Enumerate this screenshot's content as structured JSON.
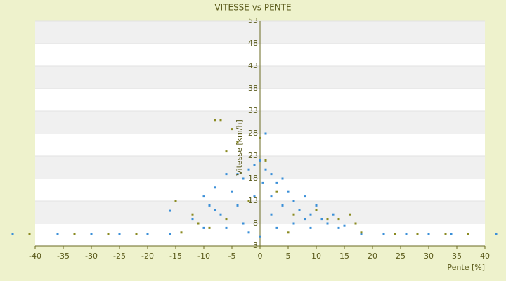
{
  "chart_data": {
    "type": "scatter",
    "title": "VITESSE vs PENTE",
    "xlabel": "Pente [%]",
    "ylabel": "Vitesse [km/h]",
    "xlim": [
      -40,
      40
    ],
    "xticks": [
      -40,
      -35,
      -30,
      -25,
      -20,
      -15,
      -10,
      -5,
      0,
      5,
      10,
      15,
      20,
      25,
      30,
      35,
      40
    ],
    "ylim": [
      3,
      53
    ],
    "yticks": [
      3,
      8,
      13,
      18,
      23,
      28,
      33,
      38,
      43,
      48,
      53
    ],
    "grid": true,
    "series": [
      {
        "color": "#3a8fd8",
        "x": [
          -44,
          -36,
          -30,
          -25,
          -20,
          -16,
          18,
          22,
          26,
          30,
          34,
          37,
          42,
          -16,
          -12,
          -10,
          -9,
          -8,
          -7,
          -6,
          -5,
          -4,
          -3,
          -2,
          -1,
          -1,
          0,
          0.5,
          1,
          1,
          2,
          2,
          3,
          4,
          5,
          6,
          7,
          8,
          9,
          10,
          11,
          12,
          13,
          14,
          15,
          -3,
          -6,
          -10,
          3,
          6,
          9,
          0,
          -2,
          2,
          -4,
          4,
          -8,
          8
        ],
        "values": [
          5.6,
          5.6,
          5.6,
          5.6,
          5.6,
          5.6,
          5.6,
          5.6,
          5.6,
          5.6,
          5.6,
          5.6,
          5.6,
          10.8,
          9,
          14,
          12,
          16,
          10,
          19,
          15,
          12,
          18,
          20,
          21,
          14,
          22,
          17,
          28,
          20,
          19,
          14,
          17,
          12,
          15,
          13,
          11,
          14,
          10,
          12,
          9,
          8,
          10,
          7,
          7.5,
          8,
          7,
          7,
          7,
          8,
          7,
          5,
          6,
          10,
          19,
          18,
          11,
          9
        ]
      },
      {
        "color": "#8a8a20",
        "x": [
          -41,
          -33,
          -27,
          -22,
          24,
          28,
          33,
          37,
          -8,
          -7,
          -5,
          -4,
          -15,
          -12,
          -11,
          -9,
          -6,
          -2,
          0,
          3,
          6,
          10,
          12,
          14,
          16,
          17,
          18,
          5,
          -14,
          -6,
          1
        ],
        "values": [
          5.7,
          5.7,
          5.7,
          5.7,
          5.7,
          5.7,
          5.7,
          5.7,
          31,
          31,
          29,
          26,
          13,
          10,
          8,
          7,
          9,
          13,
          27,
          15,
          10,
          11,
          9,
          9,
          10,
          8,
          6,
          6,
          6,
          24,
          22
        ]
      }
    ]
  }
}
